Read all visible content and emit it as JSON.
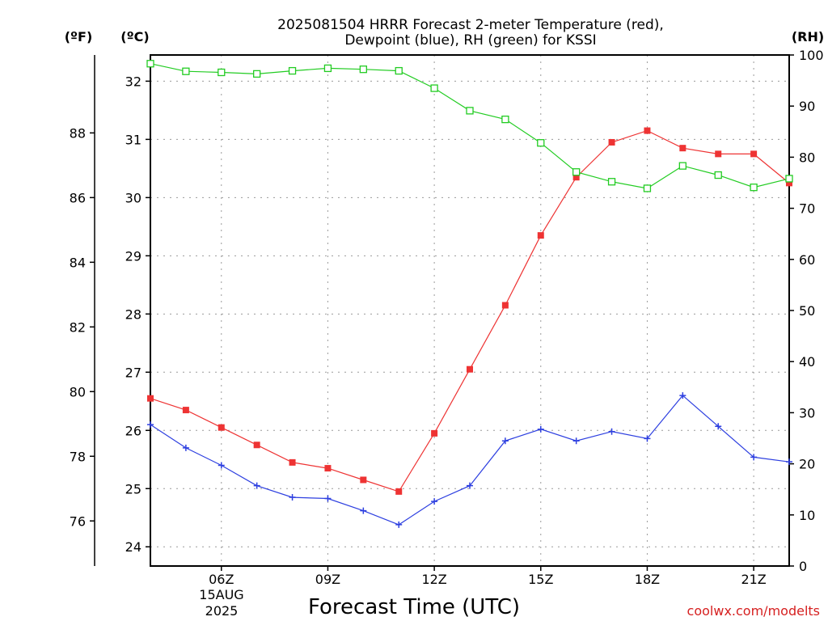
{
  "chart_data": {
    "type": "line",
    "title_line1": "2025081504 HRRR Forecast 2-meter Temperature (red),",
    "title_line2": "Dewpoint (blue), RH (green) for KSSI",
    "xlabel": "Forecast Time (UTC)",
    "date_label_1": "15AUG",
    "date_label_2": "2025",
    "credit": "coolwx.com/modelts",
    "units": {
      "fahrenheit": "(ºF)",
      "celsius": "(ºC)",
      "rh": "(RH)"
    },
    "x_hours": [
      4,
      5,
      6,
      7,
      8,
      9,
      10,
      11,
      12,
      13,
      14,
      15,
      16,
      17,
      18,
      19,
      20,
      21,
      22
    ],
    "xlim": [
      4,
      22
    ],
    "x_ticks": [
      {
        "h": 6,
        "label": "06Z"
      },
      {
        "h": 9,
        "label": "09Z"
      },
      {
        "h": 12,
        "label": "12Z"
      },
      {
        "h": 15,
        "label": "15Z"
      },
      {
        "h": 18,
        "label": "18Z"
      },
      {
        "h": 21,
        "label": "21Z"
      }
    ],
    "celsius_axis": {
      "lim": [
        23.67,
        32.45
      ],
      "ticks": [
        "24",
        "25",
        "26",
        "27",
        "28",
        "29",
        "30",
        "31",
        "32"
      ]
    },
    "fahrenheit_axis": {
      "ticks": [
        "76",
        "78",
        "80",
        "82",
        "84",
        "86",
        "88"
      ]
    },
    "rh_axis": {
      "lim": [
        0,
        100
      ],
      "ticks": [
        "0",
        "10",
        "20",
        "30",
        "40",
        "50",
        "60",
        "70",
        "80",
        "90",
        "100"
      ]
    },
    "grid": true,
    "series": [
      {
        "name": "Temperature",
        "color": "#ee3333",
        "marker": "filled-square",
        "axis": "celsius",
        "values": [
          26.55,
          26.35,
          26.05,
          25.75,
          25.45,
          25.35,
          25.15,
          24.95,
          25.95,
          27.05,
          28.15,
          29.35,
          30.35,
          30.95,
          31.15,
          30.85,
          30.75,
          30.75,
          30.25
        ]
      },
      {
        "name": "Dewpoint",
        "color": "#2d3fe0",
        "marker": "plus",
        "axis": "celsius",
        "values": [
          26.1,
          25.7,
          25.4,
          25.05,
          24.85,
          24.83,
          24.62,
          24.38,
          24.78,
          25.05,
          25.82,
          26.02,
          25.82,
          25.98,
          25.86,
          26.6,
          26.07,
          25.54,
          25.46
        ]
      },
      {
        "name": "RH",
        "color": "#22cc22",
        "marker": "open-square",
        "axis": "rh",
        "values": [
          98.3,
          96.8,
          96.6,
          96.3,
          96.9,
          97.4,
          97.2,
          96.9,
          93.5,
          89.1,
          87.4,
          82.8,
          77.1,
          75.2,
          73.9,
          78.3,
          76.5,
          74.1,
          75.8
        ]
      }
    ]
  }
}
